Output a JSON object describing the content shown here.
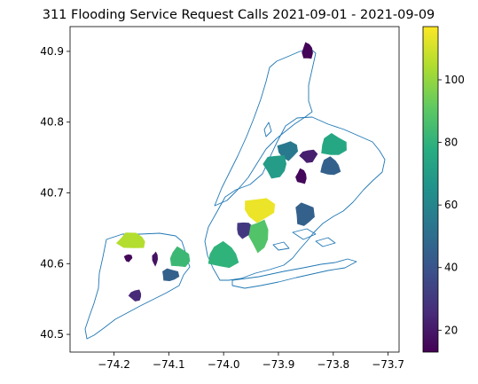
{
  "chart_data": {
    "type": "choropleth",
    "title": "311 Flooding Service Request Calls 2021-09-01 - 2021-09-09",
    "xlabel": "",
    "ylabel": "",
    "xlim": [
      -74.28,
      -73.68
    ],
    "ylim": [
      40.475,
      40.935
    ],
    "x_ticks": [
      -74.2,
      -74.1,
      -74.0,
      -73.9,
      -73.8,
      -73.7
    ],
    "x_tick_labels": [
      "−74.2",
      "−74.1",
      "−74.0",
      "−73.9",
      "−73.8",
      "−73.7"
    ],
    "y_ticks": [
      40.5,
      40.6,
      40.7,
      40.8,
      40.9
    ],
    "y_tick_labels": [
      "40.5",
      "40.6",
      "40.7",
      "40.8",
      "40.9"
    ],
    "grid": false,
    "boundary_color": "#1f77b4",
    "colormap": "viridis",
    "colorbar": {
      "location": "right",
      "range": [
        13,
        117
      ],
      "ticks": [
        20,
        40,
        60,
        80,
        100
      ],
      "tick_labels": [
        "20",
        "40",
        "60",
        "80",
        "100"
      ]
    },
    "regions": [
      {
        "lon": -73.847,
        "lat": 40.9,
        "value": 14
      },
      {
        "lon": -73.8,
        "lat": 40.767,
        "value": 75
      },
      {
        "lon": -73.845,
        "lat": 40.752,
        "value": 22
      },
      {
        "lon": -73.883,
        "lat": 40.76,
        "value": 55
      },
      {
        "lon": -73.905,
        "lat": 40.738,
        "value": 70
      },
      {
        "lon": -73.805,
        "lat": 40.737,
        "value": 45
      },
      {
        "lon": -73.858,
        "lat": 40.723,
        "value": 15
      },
      {
        "lon": -73.935,
        "lat": 40.677,
        "value": 114
      },
      {
        "lon": -73.853,
        "lat": 40.67,
        "value": 45
      },
      {
        "lon": -73.962,
        "lat": 40.648,
        "value": 30
      },
      {
        "lon": -73.935,
        "lat": 40.64,
        "value": 88
      },
      {
        "lon": -74.0,
        "lat": 40.611,
        "value": 80
      },
      {
        "lon": -74.167,
        "lat": 40.632,
        "value": 105
      },
      {
        "lon": -74.08,
        "lat": 40.608,
        "value": 83
      },
      {
        "lon": -74.098,
        "lat": 40.584,
        "value": 45
      },
      {
        "lon": -74.174,
        "lat": 40.608,
        "value": 15
      },
      {
        "lon": -74.125,
        "lat": 40.607,
        "value": 18
      },
      {
        "lon": -74.16,
        "lat": 40.555,
        "value": 25
      }
    ]
  }
}
